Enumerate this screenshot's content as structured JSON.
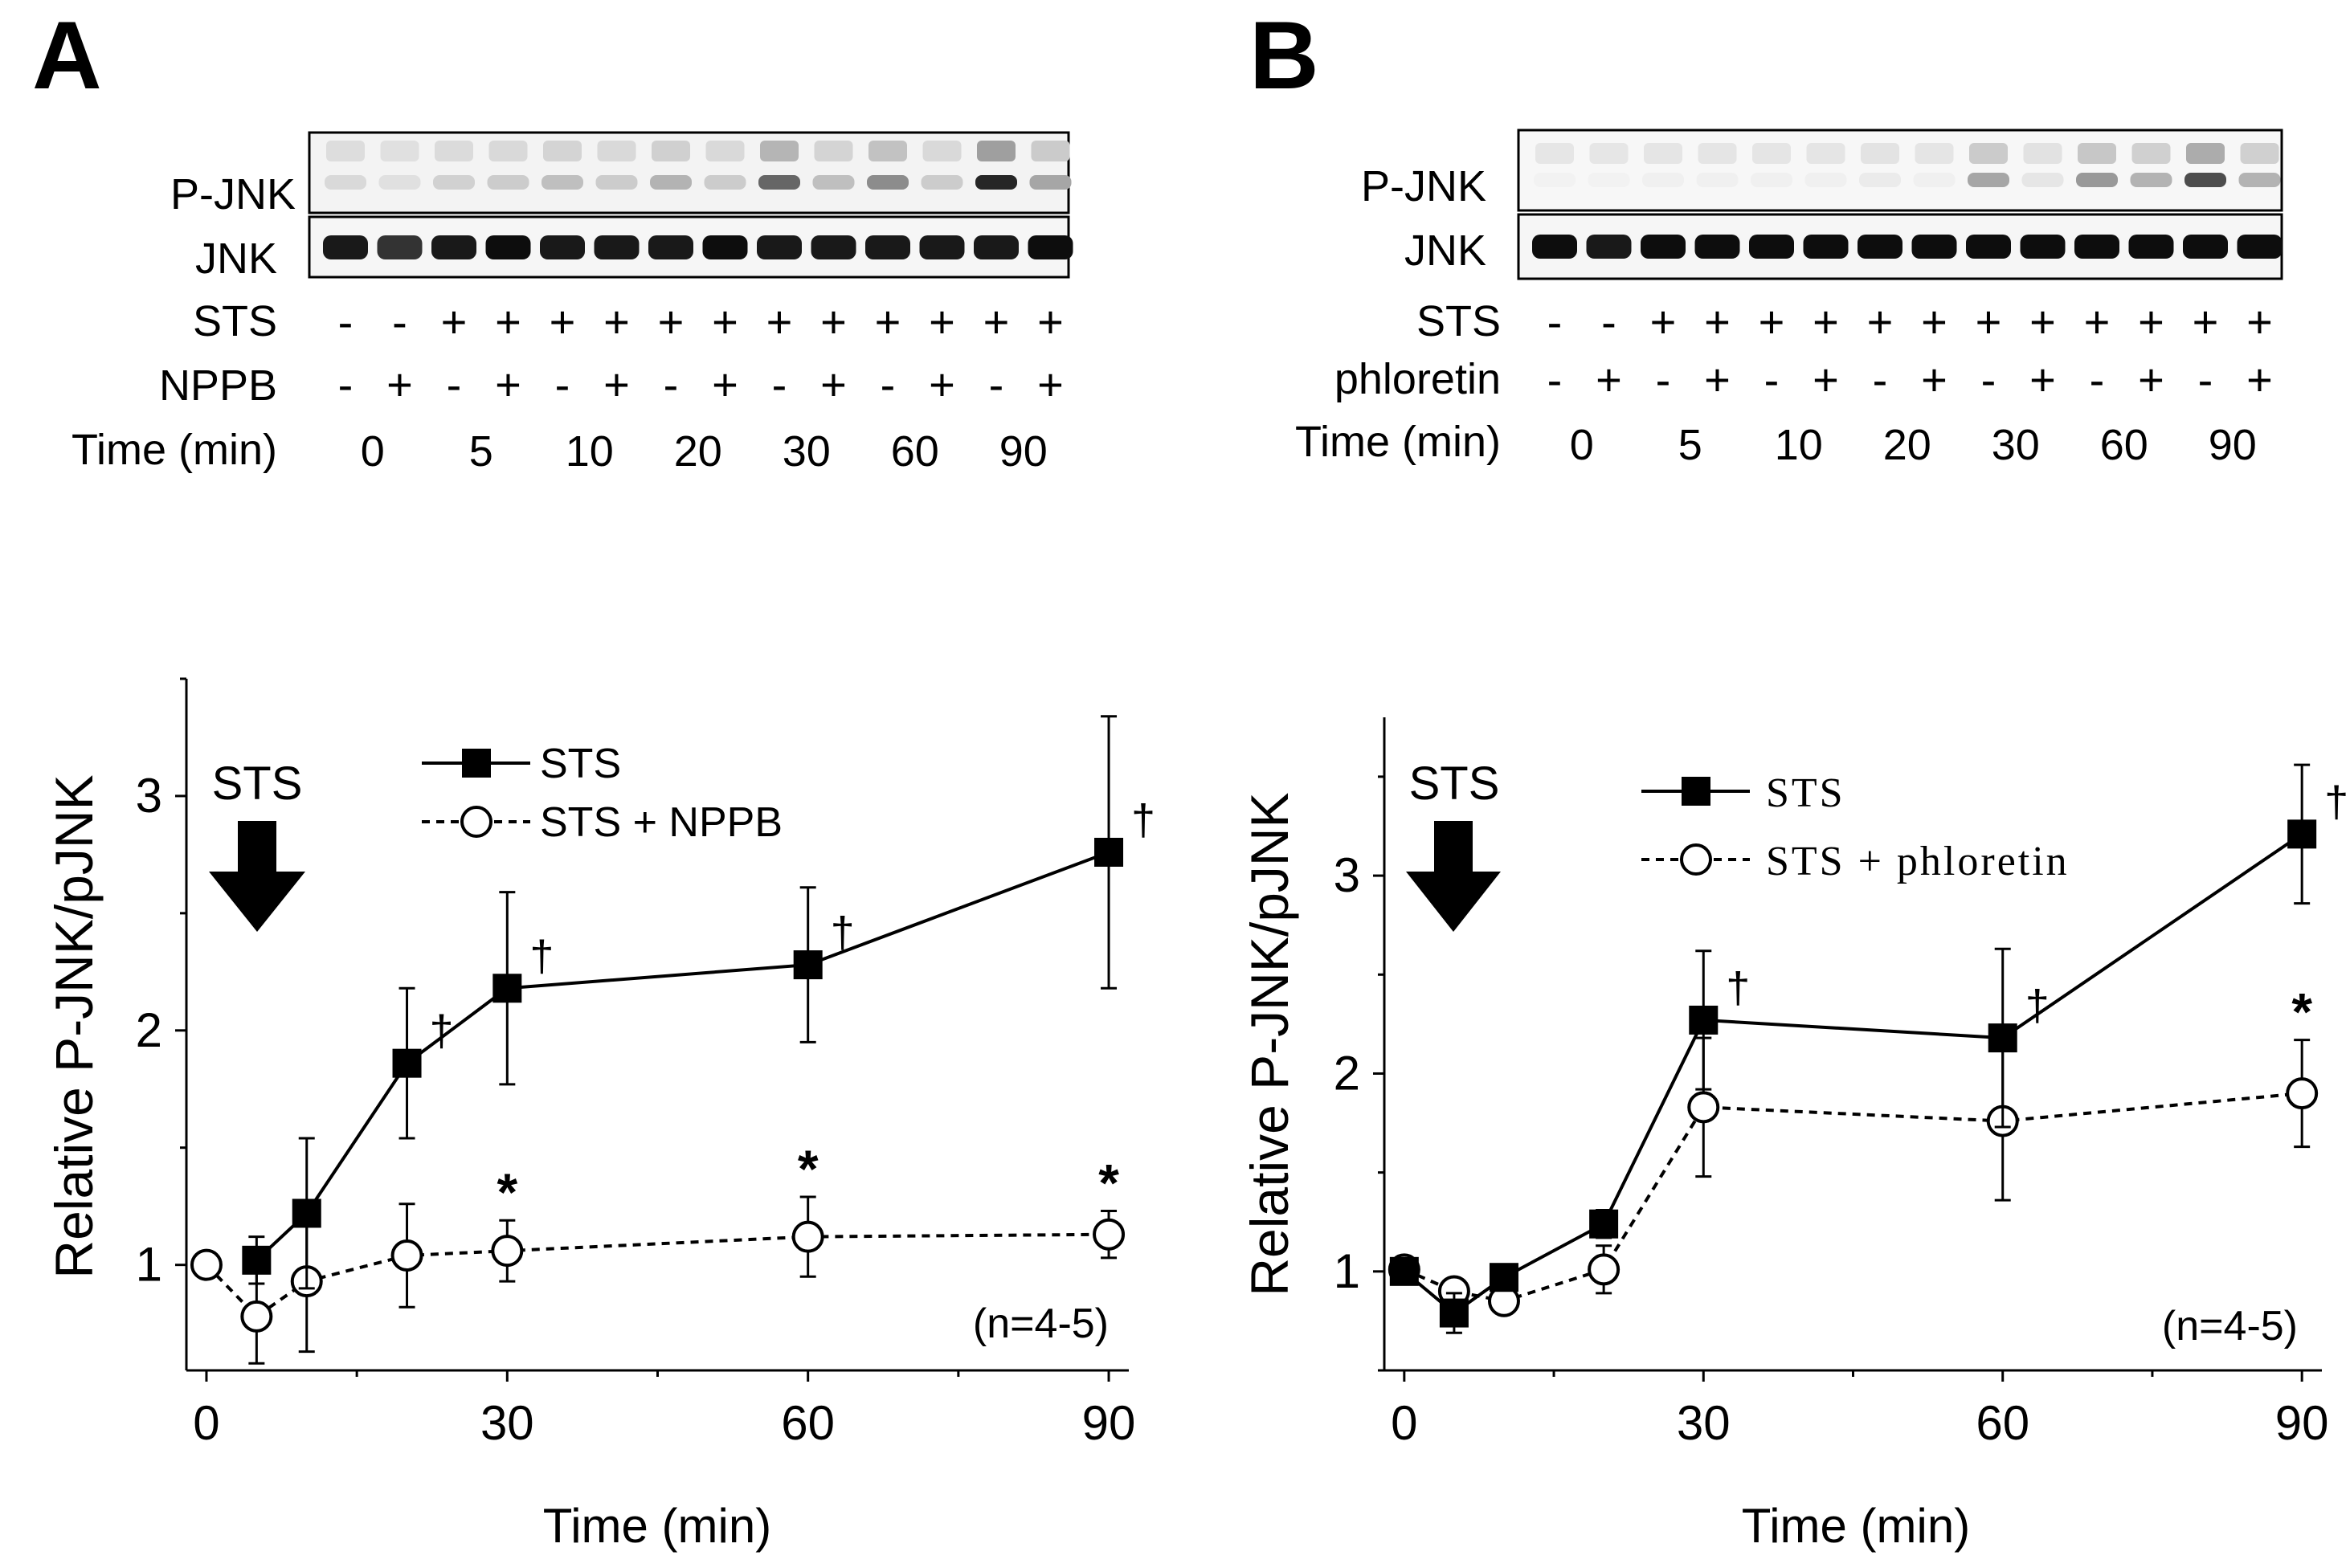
{
  "panels": [
    {
      "letter": "A",
      "blot": {
        "rows": [
          "P-JNK",
          "JNK"
        ],
        "sts_label": "STS",
        "treatment_label": "NPPB",
        "time_label": "Time (min)",
        "sts_signs": [
          "-",
          "-",
          "+",
          "+",
          "+",
          "+",
          "+",
          "+",
          "+",
          "+",
          "+",
          "+",
          "+",
          "+"
        ],
        "treatment_signs": [
          "-",
          "+",
          "-",
          "+",
          "-",
          "+",
          "-",
          "+",
          "-",
          "+",
          "-",
          "+",
          "-",
          "+"
        ],
        "time_values": [
          "0",
          "5",
          "10",
          "20",
          "30",
          "60",
          "90"
        ],
        "pjnk_control_intensity": [
          0.15,
          0.12,
          0.18,
          0.2,
          0.25,
          0.2,
          0.3,
          0.2,
          0.6,
          0.25,
          0.45,
          0.2,
          0.85,
          0.35
        ],
        "jnk_intensity": [
          0.9,
          0.8,
          0.9,
          0.95,
          0.9,
          0.9,
          0.9,
          0.95,
          0.9,
          0.9,
          0.9,
          0.9,
          0.9,
          0.95
        ]
      }
    },
    {
      "letter": "B",
      "blot": {
        "rows": [
          "P-JNK",
          "JNK"
        ],
        "sts_label": "STS",
        "treatment_label": "phloretin",
        "time_label": "Time (min)",
        "sts_signs": [
          "-",
          "-",
          "+",
          "+",
          "+",
          "+",
          "+",
          "+",
          "+",
          "+",
          "+",
          "+",
          "+",
          "+"
        ],
        "treatment_signs": [
          "-",
          "+",
          "-",
          "+",
          "-",
          "+",
          "-",
          "+",
          "-",
          "+",
          "-",
          "+",
          "-",
          "+"
        ],
        "time_values": [
          "0",
          "5",
          "10",
          "20",
          "30",
          "60",
          "90"
        ],
        "pjnk_control_intensity": [
          0.05,
          0.05,
          0.06,
          0.06,
          0.06,
          0.06,
          0.08,
          0.06,
          0.35,
          0.1,
          0.4,
          0.3,
          0.7,
          0.3
        ],
        "jnk_intensity": [
          0.95,
          0.9,
          0.95,
          0.95,
          0.95,
          0.95,
          0.95,
          0.95,
          0.95,
          0.95,
          0.95,
          0.95,
          0.95,
          0.95
        ]
      }
    }
  ],
  "chart_data": [
    {
      "type": "line",
      "title": "",
      "xlabel": "Time (min)",
      "ylabel": "Relative P-JNK/pJNK",
      "xlim": [
        -2,
        92
      ],
      "ylim": [
        0.55,
        3.5
      ],
      "xticks": [
        "0",
        "30",
        "60",
        "90"
      ],
      "yticks": [
        "1",
        "2",
        "3"
      ],
      "arrow_label": "STS",
      "n_label": "(n=4-5)",
      "series": [
        {
          "name": "STS",
          "style": "solid",
          "marker": "filled-square",
          "x": [
            5,
            10,
            20,
            30,
            60,
            90
          ],
          "y": [
            1.02,
            1.22,
            1.86,
            2.18,
            2.28,
            2.76
          ],
          "err": [
            0.1,
            0.32,
            0.32,
            0.41,
            0.33,
            0.58
          ],
          "marks": [
            "",
            "",
            "†",
            "†",
            "†",
            "†"
          ]
        },
        {
          "name": "STS + NPPB",
          "style": "dashed",
          "marker": "open-circle",
          "x": [
            0,
            5,
            10,
            20,
            30,
            60,
            90
          ],
          "y": [
            1.0,
            0.78,
            0.93,
            1.04,
            1.06,
            1.12,
            1.13
          ],
          "err": [
            0.04,
            0.2,
            0.3,
            0.22,
            0.13,
            0.17,
            0.1
          ],
          "marks": [
            "",
            "",
            "",
            "",
            "*",
            "*",
            "*"
          ]
        }
      ]
    },
    {
      "type": "line",
      "title": "",
      "xlabel": "Time (min)",
      "ylabel": "Relative P-JNK/pJNK",
      "xlim": [
        -2,
        92
      ],
      "ylim": [
        0.5,
        3.8
      ],
      "xticks": [
        "0",
        "30",
        "60",
        "90"
      ],
      "yticks": [
        "1",
        "2",
        "3"
      ],
      "arrow_label": "STS",
      "n_label": "(n=4-5)",
      "series": [
        {
          "name": "STS",
          "style": "solid",
          "marker": "filled-square",
          "x": [
            0,
            5,
            10,
            20,
            30,
            60,
            90
          ],
          "y": [
            1.0,
            0.79,
            0.97,
            1.24,
            2.27,
            2.18,
            3.21
          ],
          "err": [
            0.04,
            0.1,
            0.06,
            0.07,
            0.35,
            0.45,
            0.35
          ],
          "marks": [
            "",
            "",
            "",
            "",
            "†",
            "†",
            "†"
          ]
        },
        {
          "name": "STS + phloretin",
          "style": "dashed",
          "marker": "open-circle",
          "x": [
            0,
            5,
            10,
            20,
            30,
            60,
            90
          ],
          "y": [
            1.01,
            0.9,
            0.85,
            1.01,
            1.83,
            1.76,
            1.9
          ],
          "err": [
            0.05,
            0.05,
            0.06,
            0.12,
            0.35,
            0.4,
            0.27
          ],
          "marks": [
            "",
            "",
            "",
            "",
            "",
            "",
            "*"
          ]
        }
      ]
    }
  ]
}
